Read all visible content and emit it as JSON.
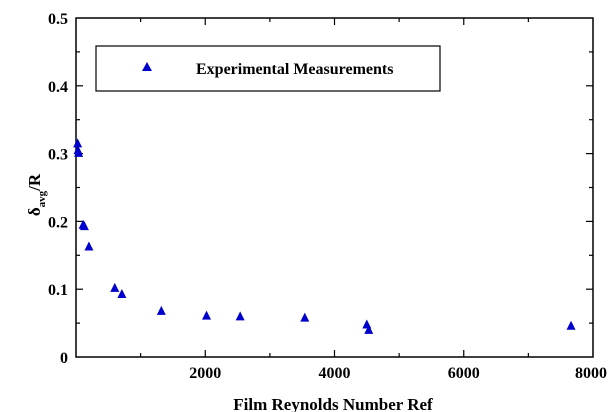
{
  "chart_data": {
    "type": "scatter",
    "xlabel": "Film Reynolds Number Ref",
    "ylabel": {
      "main": "δ",
      "sub": "avg",
      "tail": "/R"
    },
    "xlim": [
      0,
      8000
    ],
    "ylim": [
      0,
      0.5
    ],
    "x_ticks": [
      {
        "value": 2000,
        "label": "2000"
      },
      {
        "value": 4000,
        "label": "4000"
      },
      {
        "value": 6000,
        "label": "6000"
      },
      {
        "value": 8000,
        "label": "8000"
      }
    ],
    "y_ticks": [
      {
        "value": 0,
        "label": "0"
      },
      {
        "value": 0.1,
        "label": "0.1"
      },
      {
        "value": 0.2,
        "label": "0.2"
      },
      {
        "value": 0.3,
        "label": "0.3"
      },
      {
        "value": 0.4,
        "label": "0.4"
      },
      {
        "value": 0.5,
        "label": "0.5"
      }
    ],
    "grid": false,
    "legend_position": "top-left",
    "series": [
      {
        "name": "Experimental Measurements",
        "marker": "triangle",
        "color": "#0000cc",
        "points": [
          {
            "x": 25,
            "y": 0.315
          },
          {
            "x": 30,
            "y": 0.305
          },
          {
            "x": 40,
            "y": 0.301
          },
          {
            "x": 110,
            "y": 0.195
          },
          {
            "x": 130,
            "y": 0.193
          },
          {
            "x": 200,
            "y": 0.163
          },
          {
            "x": 600,
            "y": 0.102
          },
          {
            "x": 710,
            "y": 0.093
          },
          {
            "x": 1320,
            "y": 0.068
          },
          {
            "x": 2020,
            "y": 0.061
          },
          {
            "x": 2540,
            "y": 0.06
          },
          {
            "x": 3540,
            "y": 0.058
          },
          {
            "x": 4500,
            "y": 0.048
          },
          {
            "x": 4530,
            "y": 0.04
          },
          {
            "x": 7660,
            "y": 0.046
          }
        ]
      }
    ]
  }
}
